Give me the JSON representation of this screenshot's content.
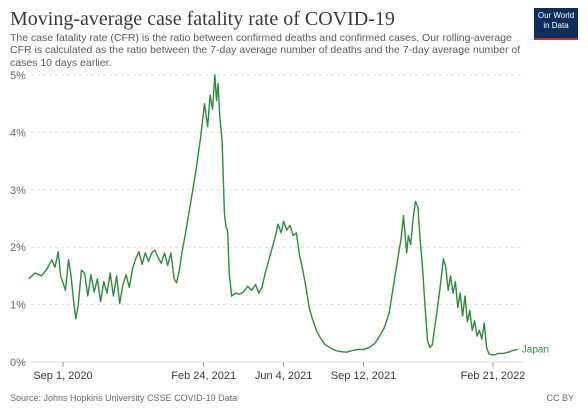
{
  "header": {
    "title": "Moving-average case fatality rate of COVID-19",
    "subtitle": "The case fatality rate (CFR) is the ratio between confirmed deaths and confirmed cases. Our rolling-average CFR is calculated as the ratio between the 7-day average number of deaths and the 7-day average number of cases 10 days earlier."
  },
  "logo": {
    "line1": "Our World",
    "line2": "in Data"
  },
  "footer": {
    "source": "Source: Johns Hopkins University CSSE COVID-19 Data",
    "license": "CC BY"
  },
  "colors": {
    "series": "#2e8b3e",
    "grid": "#dddddd",
    "logo_bg": "#0c2c5a",
    "logo_accent": "#c2371c"
  },
  "chart_data": {
    "type": "line",
    "title": "Moving-average case fatality rate of COVID-19",
    "xlabel": "",
    "ylabel": "",
    "y_unit": "%",
    "ylim": [
      0,
      5
    ],
    "y_ticks": [
      0,
      1,
      2,
      3,
      4,
      5
    ],
    "y_tick_labels": [
      "0%",
      "1%",
      "2%",
      "3%",
      "4%",
      "5%"
    ],
    "x_ticks": [
      "2020-09-01",
      "2021-02-24",
      "2021-06-04",
      "2021-09-12",
      "2022-02-21"
    ],
    "x_tick_labels": [
      "Sep 1, 2020",
      "Feb 24, 2021",
      "Jun 4, 2021",
      "Sep 12, 2021",
      "Feb 21, 2022"
    ],
    "grid": "horizontal dashed",
    "series": [
      {
        "name": "Japan",
        "points": [
          [
            "2020-07-20",
            1.45
          ],
          [
            "2020-07-28",
            1.55
          ],
          [
            "2020-08-05",
            1.5
          ],
          [
            "2020-08-12",
            1.62
          ],
          [
            "2020-08-18",
            1.78
          ],
          [
            "2020-08-22",
            1.65
          ],
          [
            "2020-08-26",
            1.92
          ],
          [
            "2020-08-29",
            1.5
          ],
          [
            "2020-09-01",
            1.38
          ],
          [
            "2020-09-04",
            1.25
          ],
          [
            "2020-09-08",
            1.78
          ],
          [
            "2020-09-11",
            1.5
          ],
          [
            "2020-09-14",
            1.1
          ],
          [
            "2020-09-17",
            0.75
          ],
          [
            "2020-09-20",
            0.98
          ],
          [
            "2020-09-24",
            1.6
          ],
          [
            "2020-09-28",
            1.55
          ],
          [
            "2020-10-02",
            1.15
          ],
          [
            "2020-10-06",
            1.52
          ],
          [
            "2020-10-10",
            1.22
          ],
          [
            "2020-10-14",
            1.45
          ],
          [
            "2020-10-18",
            1.05
          ],
          [
            "2020-10-22",
            1.4
          ],
          [
            "2020-10-26",
            1.2
          ],
          [
            "2020-10-30",
            1.55
          ],
          [
            "2020-11-03",
            1.15
          ],
          [
            "2020-11-07",
            1.5
          ],
          [
            "2020-11-11",
            1.02
          ],
          [
            "2020-11-15",
            1.35
          ],
          [
            "2020-11-19",
            1.52
          ],
          [
            "2020-11-23",
            1.3
          ],
          [
            "2020-11-27",
            1.62
          ],
          [
            "2020-12-01",
            1.8
          ],
          [
            "2020-12-05",
            1.92
          ],
          [
            "2020-12-09",
            1.7
          ],
          [
            "2020-12-13",
            1.9
          ],
          [
            "2020-12-17",
            1.75
          ],
          [
            "2020-12-21",
            1.9
          ],
          [
            "2020-12-25",
            1.95
          ],
          [
            "2020-12-29",
            1.82
          ],
          [
            "2021-01-02",
            1.72
          ],
          [
            "2021-01-06",
            1.9
          ],
          [
            "2021-01-10",
            1.68
          ],
          [
            "2021-01-14",
            1.9
          ],
          [
            "2021-01-18",
            1.45
          ],
          [
            "2021-01-21",
            1.38
          ],
          [
            "2021-01-24",
            1.55
          ],
          [
            "2021-01-28",
            1.92
          ],
          [
            "2021-02-02",
            2.3
          ],
          [
            "2021-02-08",
            2.8
          ],
          [
            "2021-02-14",
            3.3
          ],
          [
            "2021-02-20",
            3.9
          ],
          [
            "2021-02-25",
            4.5
          ],
          [
            "2021-03-01",
            4.1
          ],
          [
            "2021-03-04",
            4.65
          ],
          [
            "2021-03-07",
            4.4
          ],
          [
            "2021-03-10",
            5.0
          ],
          [
            "2021-03-12",
            4.55
          ],
          [
            "2021-03-14",
            4.85
          ],
          [
            "2021-03-16",
            4.3
          ],
          [
            "2021-03-19",
            3.85
          ],
          [
            "2021-03-22",
            2.6
          ],
          [
            "2021-03-24",
            2.35
          ],
          [
            "2021-03-26",
            2.3
          ],
          [
            "2021-03-28",
            1.55
          ],
          [
            "2021-03-31",
            1.15
          ],
          [
            "2021-04-05",
            1.2
          ],
          [
            "2021-04-10",
            1.18
          ],
          [
            "2021-04-15",
            1.22
          ],
          [
            "2021-04-20",
            1.32
          ],
          [
            "2021-04-25",
            1.25
          ],
          [
            "2021-04-30",
            1.35
          ],
          [
            "2021-05-04",
            1.2
          ],
          [
            "2021-05-08",
            1.3
          ],
          [
            "2021-05-12",
            1.55
          ],
          [
            "2021-05-16",
            1.75
          ],
          [
            "2021-05-20",
            1.95
          ],
          [
            "2021-05-24",
            2.15
          ],
          [
            "2021-05-28",
            2.4
          ],
          [
            "2021-06-01",
            2.25
          ],
          [
            "2021-06-04",
            2.45
          ],
          [
            "2021-06-08",
            2.3
          ],
          [
            "2021-06-12",
            2.38
          ],
          [
            "2021-06-16",
            2.2
          ],
          [
            "2021-06-20",
            2.25
          ],
          [
            "2021-06-24",
            1.85
          ],
          [
            "2021-06-28",
            1.6
          ],
          [
            "2021-07-02",
            1.3
          ],
          [
            "2021-07-06",
            0.95
          ],
          [
            "2021-07-10",
            0.75
          ],
          [
            "2021-07-15",
            0.55
          ],
          [
            "2021-07-20",
            0.42
          ],
          [
            "2021-07-26",
            0.3
          ],
          [
            "2021-08-01",
            0.25
          ],
          [
            "2021-08-08",
            0.2
          ],
          [
            "2021-08-15",
            0.18
          ],
          [
            "2021-08-22",
            0.17
          ],
          [
            "2021-08-29",
            0.2
          ],
          [
            "2021-09-05",
            0.22
          ],
          [
            "2021-09-12",
            0.22
          ],
          [
            "2021-09-19",
            0.25
          ],
          [
            "2021-09-26",
            0.32
          ],
          [
            "2021-10-02",
            0.45
          ],
          [
            "2021-10-08",
            0.6
          ],
          [
            "2021-10-14",
            0.85
          ],
          [
            "2021-10-18",
            1.2
          ],
          [
            "2021-10-22",
            1.55
          ],
          [
            "2021-10-26",
            1.9
          ],
          [
            "2021-10-29",
            2.15
          ],
          [
            "2021-11-01",
            2.55
          ],
          [
            "2021-11-03",
            2.2
          ],
          [
            "2021-11-05",
            1.9
          ],
          [
            "2021-11-07",
            2.2
          ],
          [
            "2021-11-10",
            2.05
          ],
          [
            "2021-11-13",
            2.5
          ],
          [
            "2021-11-16",
            2.8
          ],
          [
            "2021-11-19",
            2.7
          ],
          [
            "2021-11-22",
            2.1
          ],
          [
            "2021-11-25",
            1.6
          ],
          [
            "2021-11-28",
            0.95
          ],
          [
            "2021-12-01",
            0.38
          ],
          [
            "2021-12-04",
            0.25
          ],
          [
            "2021-12-07",
            0.3
          ],
          [
            "2021-12-10",
            0.6
          ],
          [
            "2021-12-13",
            0.9
          ],
          [
            "2021-12-16",
            1.2
          ],
          [
            "2021-12-19",
            1.55
          ],
          [
            "2021-12-21",
            1.8
          ],
          [
            "2021-12-24",
            1.65
          ],
          [
            "2021-12-27",
            1.25
          ],
          [
            "2021-12-30",
            1.5
          ],
          [
            "2022-01-02",
            1.2
          ],
          [
            "2022-01-05",
            1.4
          ],
          [
            "2022-01-08",
            0.95
          ],
          [
            "2022-01-11",
            1.2
          ],
          [
            "2022-01-14",
            0.8
          ],
          [
            "2022-01-17",
            1.15
          ],
          [
            "2022-01-20",
            0.7
          ],
          [
            "2022-01-23",
            0.9
          ],
          [
            "2022-01-26",
            0.55
          ],
          [
            "2022-01-29",
            0.72
          ],
          [
            "2022-02-01",
            0.45
          ],
          [
            "2022-02-04",
            0.55
          ],
          [
            "2022-02-07",
            0.4
          ],
          [
            "2022-02-10",
            0.68
          ],
          [
            "2022-02-13",
            0.25
          ],
          [
            "2022-02-16",
            0.14
          ],
          [
            "2022-02-22",
            0.12
          ],
          [
            "2022-02-28",
            0.15
          ],
          [
            "2022-03-06",
            0.15
          ],
          [
            "2022-03-12",
            0.17
          ],
          [
            "2022-03-18",
            0.2
          ],
          [
            "2022-03-24",
            0.22
          ]
        ]
      }
    ]
  }
}
